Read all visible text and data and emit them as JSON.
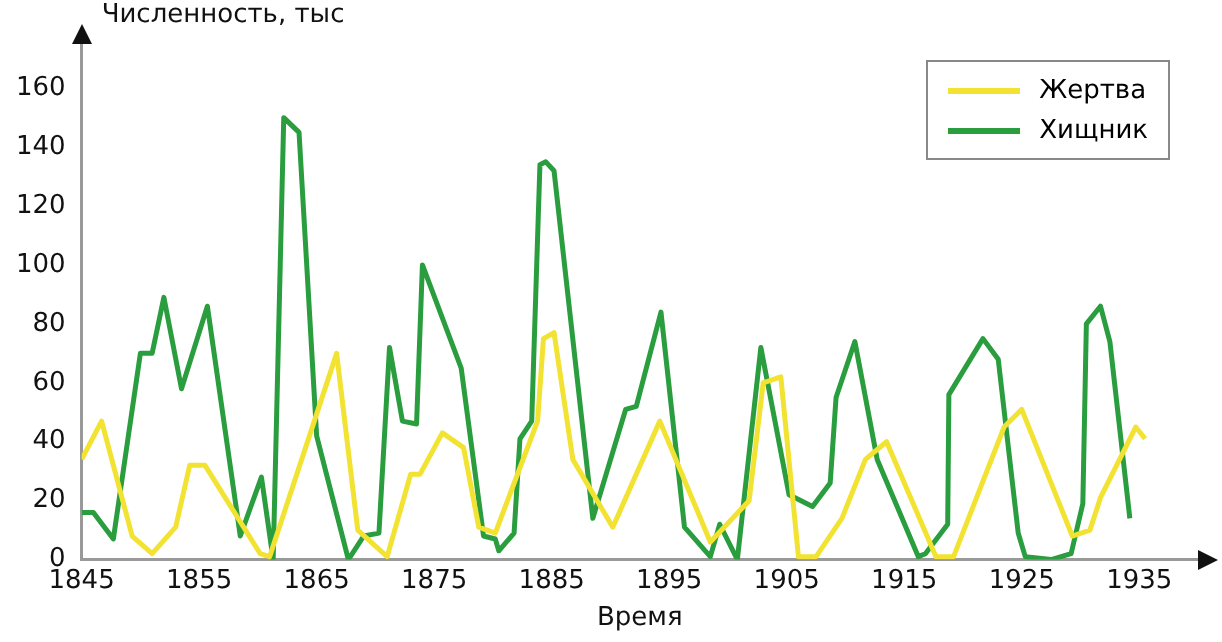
{
  "chart_data": {
    "type": "line",
    "ylabel": "Численность, тыс",
    "xlabel": "Время",
    "xlim": [
      1845,
      1940
    ],
    "xticks": [
      1845,
      1855,
      1865,
      1875,
      1885,
      1895,
      1905,
      1915,
      1925,
      1935
    ],
    "ylim": [
      0,
      175
    ],
    "yticks": [
      0,
      20,
      40,
      60,
      80,
      100,
      120,
      140,
      160
    ],
    "grid": false,
    "legend": "top right",
    "marker": "none",
    "line_style": "solid",
    "series": [
      {
        "name": "Жертва",
        "color": "#f2e231",
        "x": [
          1845,
          1846.7,
          1849.3,
          1851,
          1853,
          1854.2,
          1855.5,
          1860.2,
          1861,
          1866.7,
          1868.5,
          1871,
          1873,
          1873.8,
          1875.7,
          1877.5,
          1878.8,
          1880.2,
          1883.8,
          1884.3,
          1885.2,
          1886.8,
          1890.2,
          1894.2,
          1898.5,
          1901.8,
          1903,
          1904.5,
          1906,
          1907.5,
          1909.7,
          1911.7,
          1913.5,
          1917.7,
          1919.2,
          1923.5,
          1925,
          1929.3,
          1930.8,
          1931.7,
          1934.7,
          1935.5
        ],
        "values": [
          34,
          47,
          8,
          2,
          11,
          32,
          32,
          2,
          1,
          70,
          10,
          1,
          29,
          29,
          43,
          38,
          11,
          9,
          47,
          75,
          77,
          34,
          11,
          47,
          6,
          20,
          60,
          62,
          1,
          1,
          14,
          34,
          40,
          1,
          1,
          45,
          51,
          8,
          10,
          21,
          45,
          41
        ]
      },
      {
        "name": "Хищник",
        "color": "#2a9d3f",
        "x": [
          1845,
          1846,
          1847.7,
          1850,
          1851,
          1852,
          1853.5,
          1855.7,
          1858.5,
          1860.3,
          1861.3,
          1862.2,
          1863.5,
          1865,
          1867.7,
          1869,
          1870.3,
          1871.2,
          1872.3,
          1873.5,
          1874,
          1877.3,
          1879.2,
          1880.2,
          1880.5,
          1881.8,
          1882.3,
          1883.3,
          1884,
          1884.5,
          1885.2,
          1888.5,
          1891.3,
          1892.2,
          1894.3,
          1896.3,
          1898.5,
          1899.3,
          1900.8,
          1902.8,
          1905.2,
          1907.2,
          1908.7,
          1909.2,
          1910.8,
          1912.7,
          1916.2,
          1916.8,
          1918.7,
          1918.8,
          1921.7,
          1923,
          1924.7,
          1925.3,
          1927.5,
          1929.2,
          1930.2,
          1930.5,
          1931.7,
          1932.5,
          1934.2
        ],
        "values": [
          16,
          16,
          7,
          70,
          70,
          89,
          58,
          86,
          8,
          28,
          0,
          150,
          145,
          42,
          0,
          8,
          9,
          72,
          47,
          46,
          100,
          65,
          8,
          7,
          3,
          9,
          41,
          47,
          134,
          135,
          132,
          14,
          51,
          52,
          84,
          11,
          1,
          12,
          0,
          72,
          22,
          18,
          26,
          55,
          74,
          34,
          1,
          2,
          12,
          56,
          75,
          68,
          9,
          1,
          0,
          2,
          19,
          80,
          86,
          74,
          14
        ]
      }
    ]
  }
}
